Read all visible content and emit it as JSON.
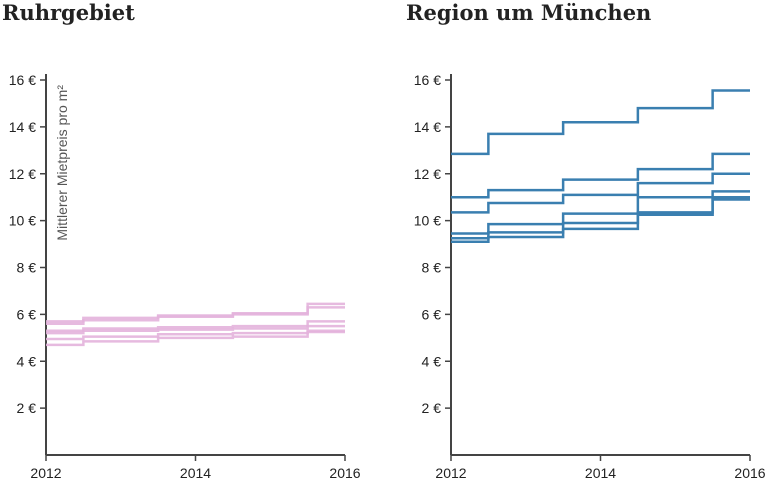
{
  "chart_data": [
    {
      "type": "line",
      "title": "Ruhrgebiet",
      "ylabel": "Mittlerer Mietpreis pro m²",
      "xlabel": "",
      "step": true,
      "color": "#e3b2dc",
      "line_opacity": 0.9,
      "xlim": [
        2012,
        2016
      ],
      "ylim": [
        0,
        16
      ],
      "x_ticks": [
        "2012",
        "2014",
        "2016"
      ],
      "y_ticks": [
        "2 €",
        "4 €",
        "6 €",
        "8 €",
        "10 €",
        "12 €",
        "14 €",
        "16 €"
      ],
      "x": [
        2012,
        2012.5,
        2013.5,
        2014.5,
        2015.5,
        2016
      ],
      "series": [
        {
          "values": [
            5.7,
            5.85,
            5.95,
            6.05,
            6.45,
            6.45
          ]
        },
        {
          "values": [
            5.6,
            5.75,
            5.9,
            6.0,
            6.3,
            6.3
          ]
        },
        {
          "values": [
            5.3,
            5.4,
            5.45,
            5.5,
            5.7,
            5.7
          ]
        },
        {
          "values": [
            5.2,
            5.3,
            5.35,
            5.4,
            5.5,
            5.5
          ]
        },
        {
          "values": [
            4.95,
            5.05,
            5.15,
            5.2,
            5.3,
            5.3
          ]
        },
        {
          "values": [
            4.7,
            4.85,
            5.0,
            5.05,
            5.25,
            5.25
          ]
        }
      ]
    },
    {
      "type": "line",
      "title": "Region um München",
      "ylabel": "",
      "xlabel": "",
      "step": true,
      "color": "#3a7fb0",
      "line_opacity": 1,
      "xlim": [
        2012,
        2016
      ],
      "ylim": [
        0,
        16
      ],
      "x_ticks": [
        "2012",
        "2014",
        "2016"
      ],
      "y_ticks": [
        "2 €",
        "4 €",
        "6 €",
        "8 €",
        "10 €",
        "12 €",
        "14 €",
        "16 €"
      ],
      "x": [
        2012,
        2012.5,
        2013.5,
        2014.5,
        2015.5,
        2016
      ],
      "series": [
        {
          "values": [
            12.85,
            13.7,
            14.2,
            14.8,
            15.55,
            15.55
          ]
        },
        {
          "values": [
            11.0,
            11.3,
            11.75,
            12.2,
            12.85,
            12.85
          ]
        },
        {
          "values": [
            10.35,
            10.75,
            11.1,
            11.6,
            12.0,
            12.0
          ]
        },
        {
          "values": [
            9.45,
            9.85,
            10.3,
            11.0,
            11.25,
            11.25
          ]
        },
        {
          "values": [
            9.25,
            9.5,
            9.9,
            10.35,
            11.0,
            11.0
          ]
        },
        {
          "values": [
            9.1,
            9.3,
            9.65,
            10.25,
            10.9,
            10.9
          ]
        }
      ]
    }
  ]
}
